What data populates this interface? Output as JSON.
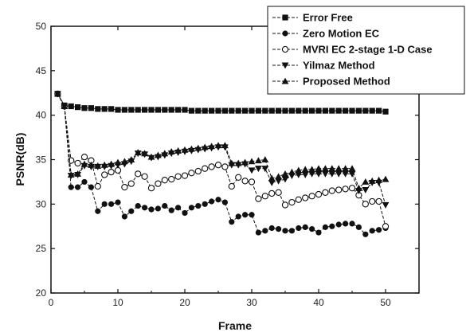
{
  "chart_data": {
    "type": "line",
    "title": "",
    "xlabel": "Frame",
    "ylabel": "PSNR(dB)",
    "xlim": [
      0,
      55
    ],
    "ylim": [
      20,
      50
    ],
    "x_ticks": [
      0,
      10,
      20,
      30,
      40,
      50
    ],
    "y_ticks": [
      20,
      25,
      30,
      35,
      40,
      45,
      50
    ],
    "grid": false,
    "legend_position": "top-right",
    "x": [
      1,
      2,
      3,
      4,
      5,
      6,
      7,
      8,
      9,
      10,
      11,
      12,
      13,
      14,
      15,
      16,
      17,
      18,
      19,
      20,
      21,
      22,
      23,
      24,
      25,
      26,
      27,
      28,
      29,
      30,
      31,
      32,
      33,
      34,
      35,
      36,
      37,
      38,
      39,
      40,
      41,
      42,
      43,
      44,
      45,
      46,
      47,
      48,
      49,
      50
    ],
    "series": [
      {
        "name": "Error Free",
        "marker": "filled-square",
        "values": [
          42.4,
          41.1,
          41.0,
          40.9,
          40.8,
          40.8,
          40.7,
          40.7,
          40.7,
          40.6,
          40.6,
          40.6,
          40.6,
          40.6,
          40.6,
          40.6,
          40.6,
          40.6,
          40.6,
          40.6,
          40.5,
          40.5,
          40.5,
          40.5,
          40.5,
          40.5,
          40.5,
          40.5,
          40.5,
          40.5,
          40.5,
          40.5,
          40.5,
          40.5,
          40.5,
          40.5,
          40.5,
          40.5,
          40.5,
          40.5,
          40.5,
          40.5,
          40.5,
          40.5,
          40.5,
          40.5,
          40.5,
          40.5,
          40.5,
          40.4
        ]
      },
      {
        "name": "Zero Motion EC",
        "marker": "filled-circle",
        "values": [
          42.4,
          41.0,
          31.9,
          31.9,
          32.5,
          31.9,
          29.2,
          30.0,
          30.0,
          30.2,
          28.6,
          29.2,
          29.8,
          29.6,
          29.4,
          29.5,
          29.8,
          29.3,
          29.6,
          29.0,
          29.6,
          29.8,
          30.0,
          30.3,
          30.5,
          30.2,
          28.0,
          28.6,
          28.8,
          28.8,
          26.8,
          27.0,
          27.3,
          27.2,
          27.0,
          27.0,
          27.3,
          27.4,
          27.2,
          26.8,
          27.4,
          27.5,
          27.7,
          27.8,
          27.8,
          27.4,
          26.6,
          27.0,
          27.1,
          27.3
        ]
      },
      {
        "name": "MVRI EC 2-stage 1-D Case",
        "marker": "open-circle",
        "values": [
          42.4,
          41.0,
          34.9,
          34.6,
          35.3,
          34.9,
          32.0,
          33.3,
          33.6,
          33.8,
          31.9,
          32.3,
          33.4,
          33.1,
          31.8,
          32.3,
          32.7,
          32.8,
          33.1,
          33.2,
          33.5,
          33.7,
          34.0,
          34.2,
          34.4,
          34.2,
          32.0,
          33.0,
          32.6,
          32.5,
          30.6,
          30.9,
          31.2,
          31.3,
          29.9,
          30.2,
          30.5,
          30.7,
          30.9,
          31.1,
          31.3,
          31.5,
          31.6,
          31.7,
          31.8,
          31.0,
          30.0,
          30.3,
          30.3,
          27.5
        ]
      },
      {
        "name": "Yilmaz Method",
        "marker": "filled-triangle-down",
        "values": [
          42.4,
          41.0,
          33.2,
          33.3,
          34.3,
          34.2,
          34.2,
          34.2,
          34.3,
          34.4,
          34.5,
          34.8,
          35.7,
          35.6,
          35.2,
          35.3,
          35.5,
          35.7,
          35.8,
          35.9,
          36.0,
          36.1,
          36.2,
          36.3,
          36.4,
          36.4,
          34.4,
          34.4,
          34.5,
          33.8,
          34.0,
          34.0,
          32.4,
          32.6,
          32.8,
          33.2,
          33.3,
          33.3,
          33.4,
          33.4,
          33.4,
          33.4,
          33.4,
          33.4,
          33.4,
          31.5,
          31.6,
          32.4,
          32.4,
          29.9
        ]
      },
      {
        "name": "Proposed Method",
        "marker": "filled-triangle-up",
        "values": [
          42.4,
          41.0,
          33.3,
          33.4,
          34.5,
          34.4,
          34.3,
          34.4,
          34.5,
          34.7,
          34.8,
          35.0,
          35.8,
          35.7,
          35.3,
          35.5,
          35.7,
          35.9,
          36.0,
          36.1,
          36.2,
          36.3,
          36.4,
          36.5,
          36.6,
          36.6,
          34.6,
          34.6,
          34.7,
          34.8,
          34.9,
          35.0,
          32.9,
          33.1,
          33.4,
          33.6,
          33.8,
          33.9,
          33.9,
          34.0,
          34.0,
          34.0,
          34.0,
          34.0,
          34.0,
          31.8,
          32.5,
          32.6,
          32.7,
          32.8
        ]
      }
    ]
  }
}
